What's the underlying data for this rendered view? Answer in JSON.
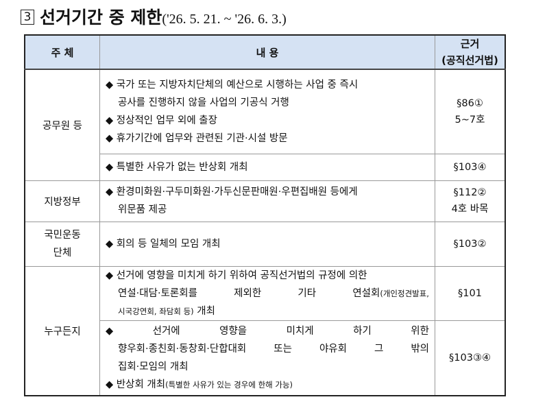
{
  "title": {
    "number": "3",
    "text": "선거기간 중 제한",
    "period": "('26. 5. 21. ~ '26. 6. 3.)"
  },
  "headers": {
    "subject": "주 체",
    "content": "내 용",
    "basis_line1": "근거",
    "basis_line2": "(공직선거법)"
  },
  "rows": {
    "officials": {
      "subject": "공무원 등",
      "a_items": [
        "◆ 국가 또는 지방자치단체의 예산으로 시행하는 사업 중 즉시",
        "공사를 진행하지 않을 사업의 기공식 거행",
        "◆ 정상적인 업무 외에 출장",
        "◆ 휴가기간에 업무와 관련된 기관·시설 방문"
      ],
      "a_basis_line1": "§86①",
      "a_basis_line2": "5~7호",
      "b_item": "◆ 특별한 사유가 없는 반상회 개최",
      "b_basis": "§103④"
    },
    "local_gov": {
      "subject": "지방정부",
      "items": [
        "◆ 환경미화원·구두미화원·가두신문판매원·우편집배원 등에게",
        "위문품 제공"
      ],
      "basis_line1": "§112②",
      "basis_line2": "4호 바목"
    },
    "civic": {
      "subject_line1": "국민운동",
      "subject_line2": "단체",
      "item": "◆ 회의 등 일체의 모임 개최",
      "basis": "§103②"
    },
    "anyone": {
      "subject": "누구든지",
      "a_line1": "◆ 선거에 영향을 미치게 하기 위하여 공직선거법의 규정에 의한",
      "a_line2_words": [
        "연설·대담·토론회를",
        "제외한",
        "기타",
        "연설회"
      ],
      "a_line2_small": "(개인정견발표,",
      "a_line3_small": "시국강연회, 좌담회 등)",
      "a_line3": " 개최",
      "a_basis": "§101",
      "b_line1_words": [
        "◆",
        "선거에",
        "영향을",
        "미치게",
        "하기",
        "위한"
      ],
      "b_line2_words": [
        "향우회·종친회·동창회·단합대회",
        "또는",
        "야유회",
        "그",
        "밖의"
      ],
      "b_line3": "집회·모임의 개최",
      "b_line4": "◆ 반상회 개최",
      "b_line4_small": "(특별한 사유가 있는 경우에 한해 가능)",
      "b_basis": "§103③④"
    }
  }
}
